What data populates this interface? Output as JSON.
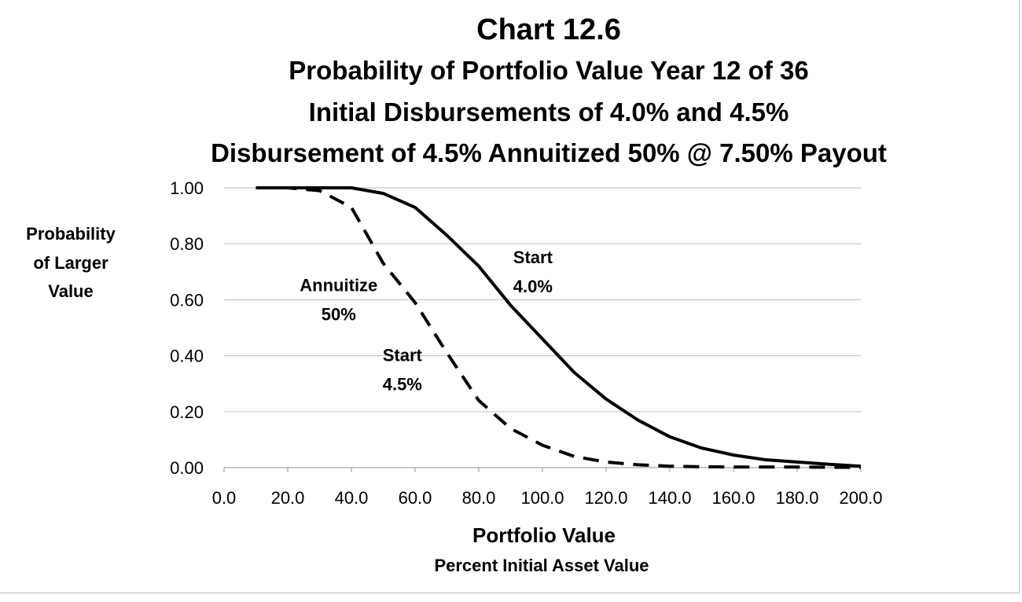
{
  "chart_data": {
    "type": "line",
    "title": "Chart 12.6",
    "subtitle_lines": [
      "Probability of Portfolio Value Year 12 of 36",
      "Initial Disbursements of 4.0% and 4.5%",
      "Disbursement of 4.5% Annuitized 50% @ 7.50% Payout"
    ],
    "ylabel_lines": [
      "Probability",
      "of Larger",
      "Value"
    ],
    "xlabel": "Portfolio Value",
    "xlabel_sub": "Percent Initial Asset Value",
    "xlim": [
      0,
      200
    ],
    "ylim": [
      0,
      1
    ],
    "x_ticks": [
      "0.0",
      "20.0",
      "40.0",
      "60.0",
      "80.0",
      "100.0",
      "120.0",
      "140.0",
      "160.0",
      "180.0",
      "200.0"
    ],
    "y_ticks": [
      "0.00",
      "0.20",
      "0.40",
      "0.60",
      "0.80",
      "1.00"
    ],
    "grid": "horizontal",
    "series": [
      {
        "style": "solid",
        "x": [
          10,
          20,
          30,
          40,
          50,
          60,
          70,
          80,
          90,
          100,
          110,
          120,
          130,
          140,
          150,
          160,
          170,
          180,
          190,
          200
        ],
        "y": [
          1.0,
          1.0,
          1.0,
          1.0,
          0.98,
          0.93,
          0.83,
          0.72,
          0.58,
          0.46,
          0.34,
          0.245,
          0.17,
          0.11,
          0.07,
          0.045,
          0.028,
          0.02,
          0.012,
          0.005
        ]
      },
      {
        "style": "dashed",
        "x": [
          10,
          20,
          30,
          40,
          50,
          60,
          70,
          80,
          90,
          100,
          110,
          120,
          130,
          140,
          150,
          160,
          170,
          180,
          190,
          200
        ],
        "y": [
          1.0,
          1.0,
          0.99,
          0.93,
          0.73,
          0.59,
          0.41,
          0.24,
          0.14,
          0.08,
          0.04,
          0.02,
          0.01,
          0.005,
          0.003,
          0.002,
          0.002,
          0.002,
          0.001,
          0.001
        ]
      }
    ],
    "annotations": [
      {
        "lines": [
          "Start",
          "4.0%"
        ],
        "x": 97,
        "y": 0.73
      },
      {
        "lines": [
          "Annuitize",
          "50%"
        ],
        "x": 36,
        "y": 0.63
      },
      {
        "lines": [
          "Start",
          "4.5%"
        ],
        "x": 56,
        "y": 0.38
      }
    ]
  }
}
